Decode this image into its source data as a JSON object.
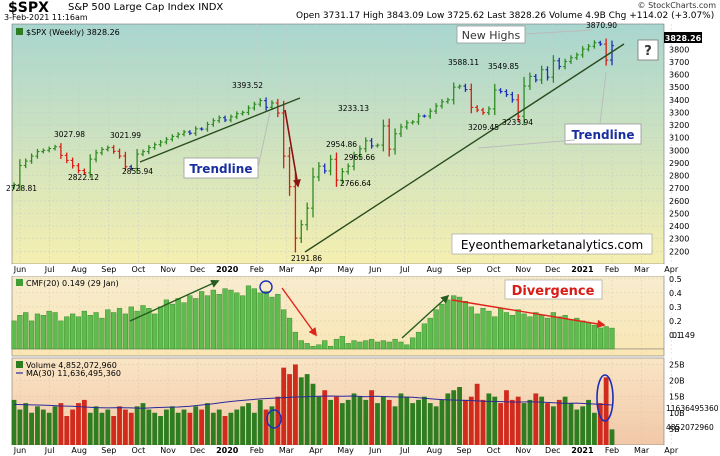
{
  "header": {
    "symbol": "$SPX",
    "name": "S&P 500 Large Cap Index  INDX",
    "date": "3-Feb-2021 11:16am",
    "source": "© StockCharts.com",
    "ohlc": "Open 3731.17   High 3843.09   Low 3725.62   Last 3828.26   Volume 4.9B   Chg +114.02 (+3.07%)",
    "chg_up_icon": "triangle-up-icon"
  },
  "chart_data": [
    {
      "type": "ohlc",
      "legend": "$SPX (Weekly) 3828.26",
      "ylim": [
        2100,
        4000
      ],
      "yticks": [
        2200,
        2300,
        2400,
        2500,
        2600,
        2700,
        2800,
        2900,
        3000,
        3100,
        3200,
        3300,
        3400,
        3500,
        3600,
        3700,
        3800,
        3900
      ],
      "last_label": "3828.26",
      "x_labels": [
        "Jun",
        "Jul",
        "Aug",
        "Sep",
        "Oct",
        "Nov",
        "Dec",
        "2020",
        "Feb",
        "Mar",
        "Apr",
        "May",
        "Jun",
        "Jul",
        "Aug",
        "Sep",
        "Oct",
        "Nov",
        "Dec",
        "2021",
        "Feb",
        "Mar",
        "Apr"
      ],
      "close": [
        2728.8,
        2880,
        2915,
        2954,
        2990,
        3000,
        3014,
        3027.98,
        2960,
        2920,
        2878,
        2840,
        2822.12,
        2930,
        2980,
        3007,
        3021.99,
        2992,
        2955,
        2870,
        2855.94,
        2970,
        2990,
        3022,
        3045,
        3065,
        3087,
        3110,
        3127,
        3145,
        3135,
        3170,
        3168,
        3205,
        3235,
        3258,
        3240,
        3265,
        3290,
        3300,
        3335,
        3365,
        3393.52,
        3340,
        3375,
        3295,
        2954,
        2712,
        2305,
        2411,
        2542,
        2789,
        2874,
        2837,
        2929,
        2764,
        2831,
        2874,
        2956,
        3012,
        3075,
        3035,
        3041,
        3193,
        3009,
        3131,
        3185,
        3218,
        3225,
        3271,
        3271,
        3310,
        3351,
        3385,
        3400,
        3500,
        3508,
        3481,
        3340,
        3319,
        3298,
        3328,
        3477,
        3465,
        3441,
        3400,
        3270,
        3509,
        3585,
        3557,
        3638,
        3579,
        3709,
        3663,
        3703,
        3733,
        3756,
        3801,
        3824,
        3852,
        3841,
        3714,
        3828.26
      ],
      "direction": [
        "u",
        "u",
        "u",
        "u",
        "u",
        "u",
        "u",
        "u",
        "r",
        "r",
        "r",
        "r",
        "r",
        "u",
        "u",
        "u",
        "u",
        "r",
        "r",
        "r",
        "b",
        "u",
        "u",
        "u",
        "u",
        "u",
        "u",
        "u",
        "u",
        "u",
        "b",
        "u",
        "b",
        "u",
        "u",
        "u",
        "b",
        "u",
        "u",
        "u",
        "u",
        "u",
        "u",
        "b",
        "u",
        "r",
        "r",
        "r",
        "r",
        "u",
        "u",
        "u",
        "u",
        "b",
        "u",
        "r",
        "u",
        "u",
        "u",
        "u",
        "u",
        "b",
        "u",
        "u",
        "r",
        "u",
        "u",
        "u",
        "u",
        "u",
        "b",
        "u",
        "u",
        "u",
        "u",
        "u",
        "u",
        "b",
        "r",
        "r",
        "r",
        "u",
        "u",
        "b",
        "b",
        "b",
        "r",
        "u",
        "u",
        "b",
        "u",
        "b",
        "u",
        "b",
        "u",
        "u",
        "u",
        "u",
        "u",
        "u",
        "b",
        "r",
        "b"
      ],
      "annotations": {
        "hi1": "3027.98",
        "lo1": "2822.12",
        "hi2": "3021.99",
        "lo2": "2855.94",
        "start": "2728.81",
        "hi3": "3393.52",
        "crash_low": "2191.86",
        "hi4": "3233.13",
        "p1": "2954.86",
        "p2": "2965.66",
        "p3": "2766.64",
        "hi5": "3588.11",
        "hi6": "3549.85",
        "lo5": "3209.45",
        "lo6": "3233.94",
        "top": "3870.90",
        "trendline_label_left": "Trendline",
        "trendline_label_right": "Trendline",
        "new_highs": "New Highs",
        "question": "?",
        "watermark": "Eyeonthemarketanalytics.com"
      }
    },
    {
      "type": "bar",
      "legend": "CMF(20) 0.149 (29 Jan)",
      "ylim": [
        -0.05,
        0.52
      ],
      "yticks": [
        0.1,
        0.2,
        0.3,
        0.4,
        0.5
      ],
      "last_label": "0.149",
      "values": [
        0.2,
        0.24,
        0.26,
        0.2,
        0.25,
        0.24,
        0.27,
        0.26,
        0.2,
        0.23,
        0.25,
        0.23,
        0.27,
        0.24,
        0.26,
        0.22,
        0.28,
        0.26,
        0.29,
        0.25,
        0.3,
        0.27,
        0.31,
        0.29,
        0.25,
        0.3,
        0.35,
        0.32,
        0.36,
        0.33,
        0.38,
        0.36,
        0.41,
        0.38,
        0.42,
        0.39,
        0.43,
        0.42,
        0.4,
        0.38,
        0.45,
        0.43,
        0.4,
        0.41,
        0.37,
        0.39,
        0.28,
        0.22,
        0.12,
        0.06,
        0.04,
        0.02,
        0.03,
        0.06,
        0.02,
        0.07,
        0.09,
        0.04,
        0.06,
        0.05,
        0.06,
        0.07,
        0.05,
        0.06,
        0.05,
        0.07,
        0.05,
        0.03,
        0.08,
        0.12,
        0.18,
        0.22,
        0.28,
        0.32,
        0.35,
        0.38,
        0.37,
        0.34,
        0.3,
        0.25,
        0.29,
        0.27,
        0.23,
        0.29,
        0.26,
        0.24,
        0.28,
        0.25,
        0.23,
        0.26,
        0.24,
        0.22,
        0.26,
        0.23,
        0.24,
        0.21,
        0.22,
        0.2,
        0.19,
        0.17,
        0.15,
        0.16,
        0.149
      ],
      "divergence_label": "Divergence"
    },
    {
      "type": "bar",
      "legend_volume": "Volume 4,852,072,960",
      "legend_ma": "MA(30) 11,636,495,360",
      "ylim": [
        0,
        27
      ],
      "yticks": [
        5,
        10,
        15,
        20,
        25
      ],
      "ytick_labels": [
        "5B",
        "10B",
        "15B",
        "20B",
        "25B"
      ],
      "ma_label": "11636495360",
      "last_label": "4852072960",
      "values_billions": [
        14,
        11,
        13,
        10,
        12,
        11,
        10,
        12,
        13,
        9,
        11,
        13,
        14,
        10,
        12,
        10,
        11,
        9,
        12,
        11,
        10,
        12,
        13,
        11,
        10,
        9,
        11,
        12,
        10,
        11,
        10,
        12,
        11,
        13,
        10,
        11,
        9,
        10,
        11,
        12,
        13,
        10,
        14,
        11,
        12,
        15,
        24,
        22,
        25,
        21,
        22,
        19,
        15,
        17,
        14,
        15,
        13,
        14,
        16,
        15,
        14,
        17,
        13,
        15,
        14,
        12,
        16,
        15,
        13,
        14,
        15,
        13,
        12,
        14,
        16,
        17,
        18,
        14,
        15,
        19,
        14,
        16,
        15,
        13,
        17,
        14,
        15,
        13,
        14,
        16,
        15,
        13,
        12,
        14,
        15,
        13,
        11,
        12,
        14,
        10,
        13,
        21,
        4.85
      ],
      "ma_billions": [
        12.6,
        12.5,
        12.4,
        12.3,
        12.1,
        12,
        11.8,
        11.6,
        11.5,
        11.6,
        11.5,
        11.4,
        11.6,
        11.7,
        11.8,
        12,
        12.4,
        12.8,
        13.3,
        13.7,
        14,
        14.3,
        14.5,
        14.7,
        14.9,
        15,
        15.1,
        15.2,
        15.1,
        15.2,
        15,
        15.1,
        15,
        14.9,
        14.8,
        14.5,
        14.2,
        14,
        13.9,
        13.8,
        13.6,
        13.5,
        13.4,
        13.3,
        13.4,
        13.3,
        13.1,
        12.9,
        13,
        12.8,
        12.6,
        12.4
      ],
      "color_up": "#2e7d20",
      "color_down": "#d12b1e"
    }
  ]
}
